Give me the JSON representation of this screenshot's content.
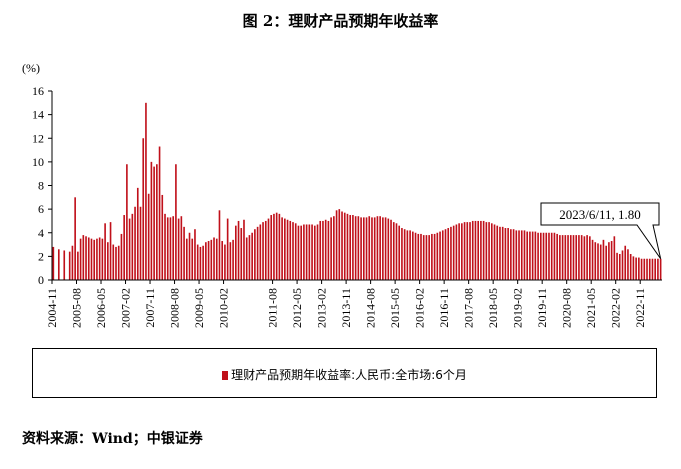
{
  "title": "图 2：理财产品预期年收益率",
  "source": "资料来源：Wind；中银证券",
  "colors": {
    "bar": "#c0101a"
  },
  "chart_data": {
    "type": "bar",
    "title": "图 2：理财产品预期年收益率",
    "ylabel": "(%)",
    "ylim": [
      0,
      16
    ],
    "yticks": [
      0,
      2,
      4,
      6,
      8,
      10,
      12,
      14,
      16
    ],
    "grid": false,
    "legend_position": "bottom",
    "x_tick_labels": [
      "2004-11",
      "2005-08",
      "2006-05",
      "2007-02",
      "2007-11",
      "2008-08",
      "2009-05",
      "2010-02",
      "2011-08",
      "2012-05",
      "2013-02",
      "2013-11",
      "2014-08",
      "2015-05",
      "2016-02",
      "2016-11",
      "2017-08",
      "2018-05",
      "2019-02",
      "2019-11",
      "2020-08",
      "2021-05",
      "2022-02",
      "2022-11"
    ],
    "series": [
      {
        "name": "理财产品预期年收益率:人民币:全市场:6个月",
        "color": "#c0101a",
        "points": [
          [
            "2004-11",
            2.8
          ],
          [
            "2005-01",
            2.6
          ],
          [
            "2005-03",
            2.5
          ],
          [
            "2005-05",
            2.4
          ],
          [
            "2005-06",
            2.9
          ],
          [
            "2005-07",
            7.0
          ],
          [
            "2005-08",
            2.4
          ],
          [
            "2005-09",
            3.5
          ],
          [
            "2005-10",
            3.8
          ],
          [
            "2005-11",
            3.7
          ],
          [
            "2005-12",
            3.6
          ],
          [
            "2006-01",
            3.5
          ],
          [
            "2006-02",
            3.4
          ],
          [
            "2006-03",
            3.5
          ],
          [
            "2006-04",
            3.6
          ],
          [
            "2006-05",
            3.5
          ],
          [
            "2006-06",
            4.8
          ],
          [
            "2006-07",
            3.2
          ],
          [
            "2006-08",
            4.9
          ],
          [
            "2006-09",
            3.0
          ],
          [
            "2006-10",
            2.8
          ],
          [
            "2006-11",
            2.9
          ],
          [
            "2006-12",
            3.9
          ],
          [
            "2007-01",
            5.5
          ],
          [
            "2007-02",
            9.8
          ],
          [
            "2007-03",
            5.2
          ],
          [
            "2007-04",
            5.6
          ],
          [
            "2007-05",
            6.2
          ],
          [
            "2007-06",
            7.8
          ],
          [
            "2007-07",
            6.2
          ],
          [
            "2007-08",
            12.0
          ],
          [
            "2007-09",
            15.0
          ],
          [
            "2007-10",
            7.3
          ],
          [
            "2007-11",
            10.0
          ],
          [
            "2007-12",
            9.6
          ],
          [
            "2008-01",
            9.8
          ],
          [
            "2008-02",
            11.3
          ],
          [
            "2008-03",
            7.2
          ],
          [
            "2008-04",
            5.6
          ],
          [
            "2008-05",
            5.3
          ],
          [
            "2008-06",
            5.3
          ],
          [
            "2008-07",
            5.4
          ],
          [
            "2008-08",
            9.8
          ],
          [
            "2008-09",
            5.2
          ],
          [
            "2008-10",
            5.4
          ],
          [
            "2008-11",
            4.5
          ],
          [
            "2008-12",
            3.5
          ],
          [
            "2009-01",
            4.0
          ],
          [
            "2009-02",
            3.5
          ],
          [
            "2009-03",
            4.3
          ],
          [
            "2009-04",
            3.0
          ],
          [
            "2009-05",
            2.8
          ],
          [
            "2009-06",
            2.9
          ],
          [
            "2009-07",
            3.2
          ],
          [
            "2009-08",
            3.3
          ],
          [
            "2009-09",
            3.4
          ],
          [
            "2009-10",
            3.6
          ],
          [
            "2009-11",
            3.5
          ],
          [
            "2009-12",
            5.9
          ],
          [
            "2010-01",
            3.3
          ],
          [
            "2010-02",
            3.0
          ],
          [
            "2010-03",
            5.2
          ],
          [
            "2010-04",
            3.2
          ],
          [
            "2010-05",
            3.4
          ],
          [
            "2010-06",
            4.6
          ],
          [
            "2010-07",
            5.0
          ],
          [
            "2010-08",
            4.4
          ],
          [
            "2010-09",
            5.1
          ],
          [
            "2010-10",
            3.6
          ],
          [
            "2010-11",
            3.8
          ],
          [
            "2010-12",
            4.0
          ],
          [
            "2011-01",
            4.3
          ],
          [
            "2011-02",
            4.5
          ],
          [
            "2011-03",
            4.7
          ],
          [
            "2011-04",
            4.9
          ],
          [
            "2011-05",
            5.0
          ],
          [
            "2011-06",
            5.2
          ],
          [
            "2011-07",
            5.5
          ],
          [
            "2011-08",
            5.6
          ],
          [
            "2011-09",
            5.7
          ],
          [
            "2011-10",
            5.6
          ],
          [
            "2011-11",
            5.3
          ],
          [
            "2011-12",
            5.2
          ],
          [
            "2012-01",
            5.1
          ],
          [
            "2012-02",
            5.0
          ],
          [
            "2012-03",
            4.9
          ],
          [
            "2012-04",
            4.8
          ],
          [
            "2012-05",
            4.6
          ],
          [
            "2012-06",
            4.6
          ],
          [
            "2012-07",
            4.7
          ],
          [
            "2012-08",
            4.7
          ],
          [
            "2012-09",
            4.7
          ],
          [
            "2012-10",
            4.7
          ],
          [
            "2012-11",
            4.6
          ],
          [
            "2012-12",
            4.7
          ],
          [
            "2013-01",
            5.0
          ],
          [
            "2013-02",
            5.0
          ],
          [
            "2013-03",
            5.1
          ],
          [
            "2013-04",
            5.0
          ],
          [
            "2013-05",
            5.3
          ],
          [
            "2013-06",
            5.4
          ],
          [
            "2013-07",
            5.9
          ],
          [
            "2013-08",
            6.0
          ],
          [
            "2013-09",
            5.8
          ],
          [
            "2013-10",
            5.7
          ],
          [
            "2013-11",
            5.6
          ],
          [
            "2013-12",
            5.5
          ],
          [
            "2014-01",
            5.5
          ],
          [
            "2014-02",
            5.4
          ],
          [
            "2014-03",
            5.4
          ],
          [
            "2014-04",
            5.3
          ],
          [
            "2014-05",
            5.3
          ],
          [
            "2014-06",
            5.3
          ],
          [
            "2014-07",
            5.4
          ],
          [
            "2014-08",
            5.3
          ],
          [
            "2014-09",
            5.3
          ],
          [
            "2014-10",
            5.4
          ],
          [
            "2014-11",
            5.4
          ],
          [
            "2014-12",
            5.3
          ],
          [
            "2015-01",
            5.3
          ],
          [
            "2015-02",
            5.2
          ],
          [
            "2015-03",
            5.1
          ],
          [
            "2015-04",
            4.9
          ],
          [
            "2015-05",
            4.8
          ],
          [
            "2015-06",
            4.6
          ],
          [
            "2015-07",
            4.4
          ],
          [
            "2015-08",
            4.3
          ],
          [
            "2015-09",
            4.2
          ],
          [
            "2015-10",
            4.2
          ],
          [
            "2015-11",
            4.1
          ],
          [
            "2015-12",
            4.0
          ],
          [
            "2016-01",
            3.9
          ],
          [
            "2016-02",
            3.9
          ],
          [
            "2016-03",
            3.8
          ],
          [
            "2016-04",
            3.8
          ],
          [
            "2016-05",
            3.8
          ],
          [
            "2016-06",
            3.9
          ],
          [
            "2016-07",
            3.9
          ],
          [
            "2016-08",
            4.0
          ],
          [
            "2016-09",
            4.1
          ],
          [
            "2016-10",
            4.2
          ],
          [
            "2016-11",
            4.3
          ],
          [
            "2016-12",
            4.4
          ],
          [
            "2017-01",
            4.5
          ],
          [
            "2017-02",
            4.6
          ],
          [
            "2017-03",
            4.7
          ],
          [
            "2017-04",
            4.8
          ],
          [
            "2017-05",
            4.8
          ],
          [
            "2017-06",
            4.9
          ],
          [
            "2017-07",
            4.9
          ],
          [
            "2017-08",
            4.9
          ],
          [
            "2017-09",
            5.0
          ],
          [
            "2017-10",
            5.0
          ],
          [
            "2017-11",
            5.0
          ],
          [
            "2017-12",
            5.0
          ],
          [
            "2018-01",
            5.0
          ],
          [
            "2018-02",
            4.9
          ],
          [
            "2018-03",
            4.9
          ],
          [
            "2018-04",
            4.8
          ],
          [
            "2018-05",
            4.7
          ],
          [
            "2018-06",
            4.6
          ],
          [
            "2018-07",
            4.5
          ],
          [
            "2018-08",
            4.5
          ],
          [
            "2018-09",
            4.4
          ],
          [
            "2018-10",
            4.4
          ],
          [
            "2018-11",
            4.3
          ],
          [
            "2018-12",
            4.3
          ],
          [
            "2019-01",
            4.2
          ],
          [
            "2019-02",
            4.2
          ],
          [
            "2019-03",
            4.2
          ],
          [
            "2019-04",
            4.2
          ],
          [
            "2019-05",
            4.1
          ],
          [
            "2019-06",
            4.1
          ],
          [
            "2019-07",
            4.1
          ],
          [
            "2019-08",
            4.1
          ],
          [
            "2019-09",
            4.0
          ],
          [
            "2019-10",
            4.0
          ],
          [
            "2019-11",
            4.0
          ],
          [
            "2019-12",
            4.0
          ],
          [
            "2020-01",
            4.0
          ],
          [
            "2020-02",
            4.0
          ],
          [
            "2020-03",
            4.0
          ],
          [
            "2020-04",
            3.9
          ],
          [
            "2020-05",
            3.8
          ],
          [
            "2020-06",
            3.8
          ],
          [
            "2020-07",
            3.8
          ],
          [
            "2020-08",
            3.8
          ],
          [
            "2020-09",
            3.8
          ],
          [
            "2020-10",
            3.8
          ],
          [
            "2020-11",
            3.8
          ],
          [
            "2020-12",
            3.8
          ],
          [
            "2021-01",
            3.8
          ],
          [
            "2021-02",
            3.7
          ],
          [
            "2021-03",
            3.8
          ],
          [
            "2021-04",
            3.7
          ],
          [
            "2021-05",
            3.4
          ],
          [
            "2021-06",
            3.2
          ],
          [
            "2021-07",
            3.1
          ],
          [
            "2021-08",
            3.0
          ],
          [
            "2021-09",
            3.4
          ],
          [
            "2021-10",
            2.9
          ],
          [
            "2021-11",
            3.2
          ],
          [
            "2021-12",
            3.3
          ],
          [
            "2022-01",
            3.7
          ],
          [
            "2022-02",
            2.3
          ],
          [
            "2022-03",
            2.2
          ],
          [
            "2022-04",
            2.5
          ],
          [
            "2022-05",
            2.9
          ],
          [
            "2022-06",
            2.6
          ],
          [
            "2022-07",
            2.2
          ],
          [
            "2022-08",
            2.0
          ],
          [
            "2022-09",
            1.9
          ],
          [
            "2022-10",
            1.9
          ],
          [
            "2022-11",
            1.8
          ],
          [
            "2022-12",
            1.8
          ],
          [
            "2023-01",
            1.8
          ],
          [
            "2023-02",
            1.8
          ],
          [
            "2023-03",
            1.8
          ],
          [
            "2023-04",
            1.8
          ],
          [
            "2023-05",
            1.8
          ],
          [
            "2023-06",
            1.8
          ]
        ]
      }
    ],
    "annotation": {
      "x": "2023/6/11",
      "y": 1.8,
      "text": "2023/6/11, 1.80"
    }
  }
}
